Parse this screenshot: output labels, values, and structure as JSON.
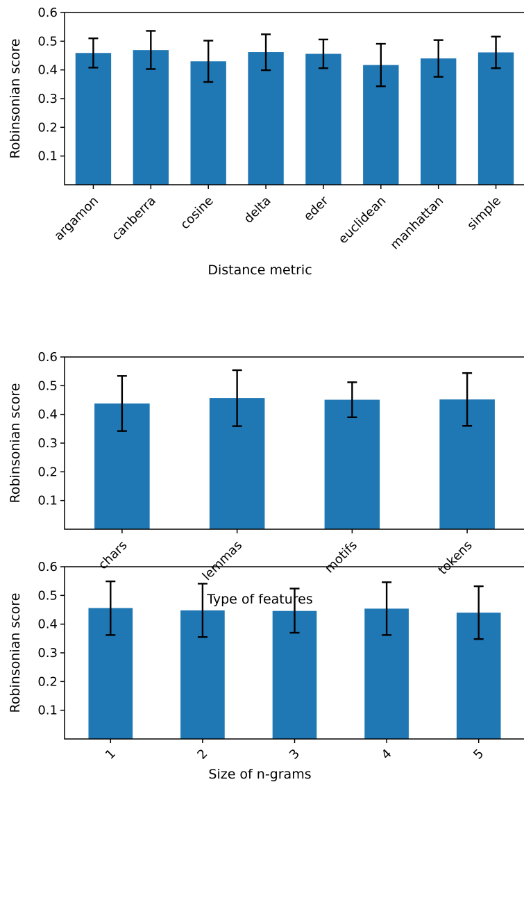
{
  "chart_data": [
    {
      "type": "bar",
      "xlabel": "Distance metric",
      "ylabel": "Robinsonian score",
      "ylim": [
        0,
        0.6
      ],
      "yticks": [
        "0.1",
        "0.2",
        "0.3",
        "0.4",
        "0.5",
        "0.6"
      ],
      "categories": [
        "argamon",
        "canberra",
        "cosine",
        "delta",
        "eder",
        "euclidean",
        "manhattan",
        "simple"
      ],
      "values": [
        0.459,
        0.469,
        0.43,
        0.462,
        0.456,
        0.417,
        0.44,
        0.461
      ],
      "error_low": [
        0.408,
        0.403,
        0.358,
        0.399,
        0.406,
        0.343,
        0.376,
        0.406
      ],
      "error_high": [
        0.51,
        0.536,
        0.502,
        0.524,
        0.506,
        0.491,
        0.504,
        0.516
      ],
      "xtick_rotation": 45,
      "grid": false
    },
    {
      "type": "bar",
      "xlabel": "Type of features",
      "ylabel": "Robinsonian score",
      "ylim": [
        0,
        0.6
      ],
      "yticks": [
        "0.1",
        "0.2",
        "0.3",
        "0.4",
        "0.5",
        "0.6"
      ],
      "categories": [
        "chars",
        "lemmas",
        "motifs",
        "tokens"
      ],
      "values": [
        0.438,
        0.457,
        0.451,
        0.452
      ],
      "error_low": [
        0.342,
        0.359,
        0.39,
        0.36
      ],
      "error_high": [
        0.534,
        0.554,
        0.512,
        0.544
      ],
      "xtick_rotation": 45,
      "grid": false
    },
    {
      "type": "bar",
      "xlabel": "Size of n-grams",
      "ylabel": "Robinsonian score",
      "ylim": [
        0,
        0.6
      ],
      "yticks": [
        "0.1",
        "0.2",
        "0.3",
        "0.4",
        "0.5",
        "0.6"
      ],
      "categories": [
        "1",
        "2",
        "3",
        "4",
        "5"
      ],
      "values": [
        0.456,
        0.448,
        0.446,
        0.454,
        0.44
      ],
      "error_low": [
        0.362,
        0.355,
        0.37,
        0.362,
        0.348
      ],
      "error_high": [
        0.549,
        0.541,
        0.524,
        0.546,
        0.532
      ],
      "xtick_rotation": 45,
      "grid": false
    }
  ]
}
